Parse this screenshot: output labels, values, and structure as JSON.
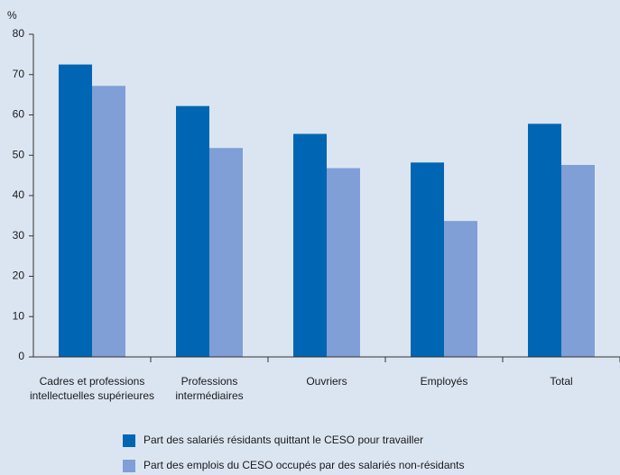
{
  "chart_data": {
    "type": "bar",
    "y_label": "%",
    "categories": [
      "Cadres et professions\nintellectuelles supérieures",
      "Professions\nintermédiaires",
      "Ouvriers",
      "Employés",
      "Total"
    ],
    "series": [
      {
        "name": "Part des salariés résidants quittant le CESO pour travailler",
        "color": "#0066b3",
        "values": [
          72.5,
          62.2,
          55.3,
          48.2,
          57.8
        ]
      },
      {
        "name": "Part des emplois du CESO occupés par des salariés non-résidants",
        "color": "#7f9fd6",
        "values": [
          67.2,
          51.8,
          46.8,
          33.7,
          47.6
        ]
      }
    ],
    "ylim": [
      0,
      80
    ],
    "yticks": [
      0,
      10,
      20,
      30,
      40,
      50,
      60,
      70,
      80
    ],
    "grid": false
  }
}
